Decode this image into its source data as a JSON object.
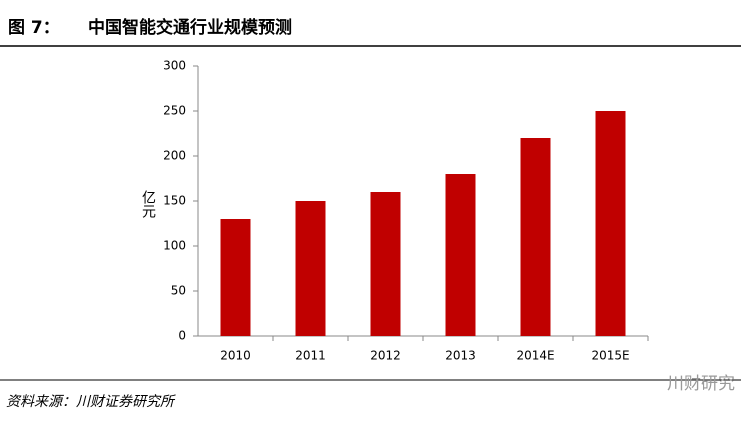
{
  "chart_data": {
    "type": "bar",
    "figure_label": "图 7：",
    "title": "中国智能交通行业规模预测",
    "y_label": "亿元",
    "categories": [
      "2010",
      "2011",
      "2012",
      "2013",
      "2014E",
      "2015E"
    ],
    "values": [
      130,
      150,
      160,
      180,
      220,
      250
    ],
    "color": "#c00000",
    "ylim": [
      0,
      300
    ],
    "yticks": [
      0,
      50,
      100,
      150,
      200,
      250,
      300
    ],
    "source": "资料来源：川财证券研究所",
    "watermark": "川财研究"
  }
}
